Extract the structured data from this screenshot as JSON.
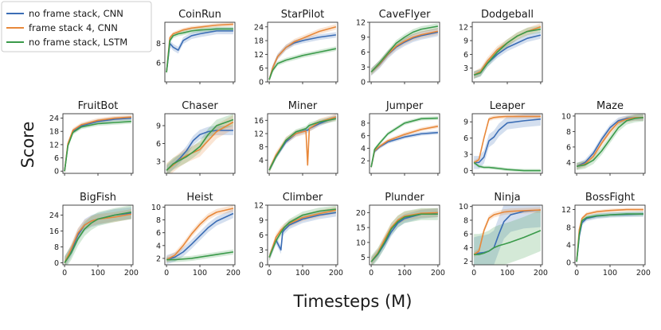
{
  "figure": {
    "ylabel": "Score",
    "xlabel": "Timesteps (M)",
    "x_ticks": [
      "0",
      "100",
      "200"
    ]
  },
  "legend": {
    "placement": "top-left",
    "entries": [
      {
        "label": "no frame stack, CNN",
        "color": "#3b6db5"
      },
      {
        "label": "frame stack 4, CNN",
        "color": "#e8883a"
      },
      {
        "label": "no frame stack, LSTM",
        "color": "#3a9a4a"
      }
    ]
  },
  "chart_data": [
    {
      "type": "line",
      "title": "CoinRun",
      "ylim": [
        4,
        10.2
      ],
      "yticks": [
        "6",
        "8"
      ],
      "x": [
        0,
        10,
        20,
        35,
        50,
        75,
        100,
        150,
        200
      ],
      "series": [
        {
          "name": "no frame stack, CNN",
          "values": [
            5,
            8.0,
            7.6,
            7.3,
            8.3,
            8.8,
            9.0,
            9.3,
            9.3
          ],
          "band": 0.35
        },
        {
          "name": "frame stack 4, CNN",
          "values": [
            5,
            8.6,
            9.0,
            9.2,
            9.4,
            9.6,
            9.7,
            9.9,
            10.0
          ],
          "band": 0.2
        },
        {
          "name": "no frame stack, LSTM",
          "values": [
            5,
            8.3,
            8.8,
            9.0,
            9.1,
            9.3,
            9.4,
            9.5,
            9.5
          ],
          "band": 0.25
        }
      ]
    },
    {
      "type": "line",
      "title": "StarPilot",
      "ylim": [
        0,
        26
      ],
      "yticks": [
        "0",
        "6",
        "12",
        "18",
        "24"
      ],
      "x": [
        0,
        10,
        25,
        50,
        75,
        100,
        150,
        200
      ],
      "series": [
        {
          "name": "no frame stack, CNN",
          "values": [
            1,
            6,
            11,
            15,
            17,
            18,
            19.5,
            20.5
          ],
          "band": 1.2
        },
        {
          "name": "frame stack 4, CNN",
          "values": [
            1,
            6,
            11,
            15,
            17.5,
            19,
            22,
            24
          ],
          "band": 1.2
        },
        {
          "name": "no frame stack, LSTM",
          "values": [
            1,
            5,
            8,
            9.5,
            10.5,
            11.5,
            13,
            14.5
          ],
          "band": 1.0
        }
      ]
    },
    {
      "type": "line",
      "title": "CaveFlyer",
      "ylim": [
        0,
        12
      ],
      "yticks": [
        "0",
        "3",
        "6",
        "9",
        "12"
      ],
      "x": [
        0,
        25,
        50,
        75,
        100,
        125,
        150,
        200
      ],
      "series": [
        {
          "name": "no frame stack, CNN",
          "values": [
            2,
            3.5,
            5.5,
            7,
            8,
            8.8,
            9.3,
            10
          ],
          "band": 0.8
        },
        {
          "name": "frame stack 4, CNN",
          "values": [
            2,
            3.6,
            5.6,
            7.2,
            8.2,
            9,
            9.5,
            10.2
          ],
          "band": 0.7
        },
        {
          "name": "no frame stack, LSTM",
          "values": [
            2,
            3.8,
            5.8,
            7.8,
            9,
            10,
            10.6,
            11.2
          ],
          "band": 0.6
        }
      ]
    },
    {
      "type": "line",
      "title": "Dodgeball",
      "ylim": [
        0,
        13
      ],
      "yticks": [
        "3",
        "6",
        "9",
        "12"
      ],
      "x": [
        0,
        20,
        40,
        70,
        100,
        130,
        160,
        200
      ],
      "series": [
        {
          "name": "no frame stack, CNN",
          "values": [
            1.5,
            2,
            4,
            6,
            7.5,
            8.5,
            9.5,
            10.2
          ],
          "band": 0.8
        },
        {
          "name": "frame stack 4, CNN",
          "values": [
            1.5,
            2.3,
            4.5,
            7,
            8.5,
            10,
            11,
            12
          ],
          "band": 0.8
        },
        {
          "name": "no frame stack, LSTM",
          "values": [
            1.5,
            2,
            4,
            6.5,
            8.5,
            10,
            11,
            11.5
          ],
          "band": 0.8
        }
      ]
    },
    {
      "type": "line",
      "title": "FruitBot",
      "ylim": [
        -1,
        26
      ],
      "yticks": [
        "0",
        "6",
        "12",
        "18",
        "24"
      ],
      "x": [
        0,
        10,
        25,
        50,
        100,
        150,
        200
      ],
      "series": [
        {
          "name": "no frame stack, CNN",
          "values": [
            0,
            12,
            18,
            20.5,
            22.5,
            23.5,
            24
          ],
          "band": 1.0
        },
        {
          "name": "frame stack 4, CNN",
          "values": [
            0,
            12.5,
            18.5,
            21,
            23,
            24,
            24.5
          ],
          "band": 1.0
        },
        {
          "name": "no frame stack, LSTM",
          "values": [
            0,
            11.5,
            17.5,
            20,
            21.5,
            22,
            22.5
          ],
          "band": 1.0
        }
      ]
    },
    {
      "type": "line",
      "title": "Chaser",
      "ylim": [
        1,
        11
      ],
      "yticks": [
        "3",
        "6",
        "9"
      ],
      "x": [
        0,
        20,
        40,
        60,
        80,
        100,
        125,
        150,
        200
      ],
      "series": [
        {
          "name": "no frame stack, CNN",
          "values": [
            1.5,
            2.5,
            3.5,
            4.8,
            6.5,
            7.5,
            8.0,
            8.2,
            8.2
          ],
          "band": 0.8
        },
        {
          "name": "frame stack 4, CNN",
          "values": [
            1.5,
            2.4,
            3.3,
            4.0,
            4.5,
            5.0,
            6.5,
            8.0,
            9.6
          ],
          "band": 1.2
        },
        {
          "name": "no frame stack, LSTM",
          "values": [
            1.5,
            2.6,
            3.2,
            3.8,
            4.6,
            5.5,
            7.5,
            9.0,
            10.0
          ],
          "band": 1.0
        }
      ]
    },
    {
      "type": "line",
      "title": "Miner",
      "ylim": [
        0,
        18
      ],
      "yticks": [
        "4",
        "8",
        "12",
        "16"
      ],
      "x": [
        0,
        20,
        50,
        80,
        110,
        115,
        120,
        150,
        200
      ],
      "series": [
        {
          "name": "no frame stack, CNN",
          "values": [
            1,
            5,
            9.5,
            12,
            13,
            13,
            13.5,
            15,
            17
          ],
          "band": 0.8
        },
        {
          "name": "frame stack 4, CNN",
          "values": [
            1,
            5.5,
            10,
            12,
            12.8,
            2.5,
            13.5,
            15.5,
            17
          ],
          "band": 1.0
        },
        {
          "name": "no frame stack, LSTM",
          "values": [
            1,
            5,
            10,
            12.5,
            13.5,
            14,
            14.5,
            15.5,
            16.5
          ],
          "band": 0.8
        }
      ]
    },
    {
      "type": "line",
      "title": "Jumper",
      "ylim": [
        0,
        9.5
      ],
      "yticks": [
        "2",
        "4",
        "6",
        "8"
      ],
      "x": [
        0,
        10,
        25,
        50,
        100,
        150,
        200
      ],
      "series": [
        {
          "name": "no frame stack, CNN",
          "values": [
            1,
            3.5,
            4.2,
            5.0,
            5.8,
            6.3,
            6.5
          ],
          "band": 0.3
        },
        {
          "name": "frame stack 4, CNN",
          "values": [
            1,
            3.6,
            4.3,
            5.2,
            6.2,
            7.0,
            7.5
          ],
          "band": 0.3
        },
        {
          "name": "no frame stack, LSTM",
          "values": [
            1,
            3.8,
            4.8,
            6.3,
            8.0,
            8.7,
            8.8
          ],
          "band": 0.3
        }
      ]
    },
    {
      "type": "line",
      "title": "Leaper",
      "ylim": [
        -0.5,
        10.5
      ],
      "yticks": [
        "0",
        "3",
        "6",
        "9"
      ],
      "x": [
        0,
        15,
        30,
        45,
        60,
        75,
        100,
        150,
        200
      ],
      "series": [
        {
          "name": "no frame stack, CNN",
          "values": [
            1.5,
            1.5,
            2.5,
            5.5,
            6.2,
            7.5,
            8.8,
            9.2,
            9.5
          ],
          "band": 1.2
        },
        {
          "name": "frame stack 4, CNN",
          "values": [
            1.5,
            2.0,
            6.0,
            9.5,
            9.8,
            9.9,
            10.0,
            10.0,
            10.0
          ],
          "band": 0.4
        },
        {
          "name": "no frame stack, LSTM",
          "values": [
            1.5,
            0.8,
            0.6,
            0.6,
            0.5,
            0.4,
            0.2,
            0.0,
            0.0
          ],
          "band": 0.3
        }
      ]
    },
    {
      "type": "line",
      "title": "Maze",
      "ylim": [
        2.6,
        10.3
      ],
      "yticks": [
        "4",
        "6",
        "8",
        "10"
      ],
      "x": [
        0,
        25,
        50,
        75,
        100,
        125,
        150,
        175,
        200
      ],
      "series": [
        {
          "name": "no frame stack, CNN",
          "values": [
            3.5,
            4.0,
            5.2,
            7.0,
            8.5,
            9.4,
            9.7,
            9.8,
            9.8
          ],
          "band": 0.4
        },
        {
          "name": "frame stack 4, CNN",
          "values": [
            3.5,
            3.8,
            4.8,
            6.5,
            8.0,
            9.2,
            9.6,
            9.8,
            9.8
          ],
          "band": 0.4
        },
        {
          "name": "no frame stack, LSTM",
          "values": [
            3.5,
            3.7,
            4.3,
            5.5,
            7.0,
            8.5,
            9.4,
            9.7,
            9.8
          ],
          "band": 0.5
        }
      ]
    },
    {
      "type": "line",
      "title": "BigFish",
      "ylim": [
        -1,
        29
      ],
      "yticks": [
        "0",
        "8",
        "16",
        "24"
      ],
      "x": [
        0,
        20,
        40,
        60,
        80,
        100,
        150,
        200
      ],
      "series": [
        {
          "name": "no frame stack, CNN",
          "values": [
            0,
            6,
            14,
            19,
            21,
            22,
            24,
            25
          ],
          "band": 3.0
        },
        {
          "name": "frame stack 4, CNN",
          "values": [
            0,
            7,
            15,
            19,
            21,
            22,
            23,
            24.5
          ],
          "band": 2.5
        },
        {
          "name": "no frame stack, LSTM",
          "values": [
            0,
            5,
            12,
            17,
            20,
            22,
            24,
            25.5
          ],
          "band": 3.5
        }
      ]
    },
    {
      "type": "line",
      "title": "Heist",
      "ylim": [
        1,
        10.3
      ],
      "yticks": [
        "2",
        "4",
        "6",
        "8",
        "10"
      ],
      "x": [
        0,
        25,
        50,
        75,
        100,
        125,
        150,
        200
      ],
      "series": [
        {
          "name": "no frame stack, CNN",
          "values": [
            1.8,
            2.2,
            3.0,
            4.2,
            5.5,
            6.8,
            7.8,
            9.0
          ],
          "band": 0.7
        },
        {
          "name": "frame stack 4, CNN",
          "values": [
            1.8,
            2.5,
            4.0,
            5.8,
            7.3,
            8.5,
            9.2,
            9.8
          ],
          "band": 0.5
        },
        {
          "name": "no frame stack, LSTM",
          "values": [
            1.8,
            1.8,
            1.9,
            2.0,
            2.2,
            2.4,
            2.6,
            3.0
          ],
          "band": 0.4
        }
      ]
    },
    {
      "type": "line",
      "title": "Climber",
      "ylim": [
        0,
        12
      ],
      "yticks": [
        "0",
        "3",
        "6",
        "9",
        "12"
      ],
      "x": [
        0,
        20,
        35,
        40,
        45,
        60,
        100,
        150,
        200
      ],
      "series": [
        {
          "name": "no frame stack, CNN",
          "values": [
            1.5,
            5.0,
            3.0,
            6.5,
            7.0,
            8.0,
            9.2,
            10.0,
            10.5
          ],
          "band": 0.8
        },
        {
          "name": "frame stack 4, CNN",
          "values": [
            1.5,
            5.5,
            7.0,
            7.3,
            7.6,
            8.3,
            9.5,
            10.3,
            11.0
          ],
          "band": 0.7
        },
        {
          "name": "no frame stack, LSTM",
          "values": [
            1.5,
            4.8,
            6.5,
            7.0,
            7.5,
            8.5,
            10.0,
            10.8,
            11.2
          ],
          "band": 0.7
        }
      ]
    },
    {
      "type": "line",
      "title": "Plunder",
      "ylim": [
        2.5,
        22.5
      ],
      "yticks": [
        "5",
        "10",
        "15",
        "20"
      ],
      "x": [
        0,
        20,
        40,
        60,
        80,
        100,
        150,
        200
      ],
      "series": [
        {
          "name": "no frame stack, CNN",
          "values": [
            3.5,
            6.0,
            9.5,
            13.5,
            16.5,
            18.0,
            19.5,
            20.0
          ],
          "band": 1.5
        },
        {
          "name": "frame stack 4, CNN",
          "values": [
            3.5,
            6.5,
            11.0,
            15.0,
            17.5,
            18.8,
            19.8,
            20.0
          ],
          "band": 1.5
        },
        {
          "name": "no frame stack, LSTM",
          "values": [
            3.5,
            6.2,
            10.0,
            14.5,
            17.0,
            18.5,
            19.5,
            19.5
          ],
          "band": 2.0
        }
      ]
    },
    {
      "type": "line",
      "title": "Ninja",
      "ylim": [
        1.5,
        10.2
      ],
      "yticks": [
        "2",
        "4",
        "6",
        "8",
        "10"
      ],
      "x": [
        0,
        15,
        30,
        45,
        60,
        75,
        90,
        110,
        150,
        200
      ],
      "series": [
        {
          "name": "no frame stack, CNN",
          "values": [
            3,
            3.2,
            3.3,
            3.5,
            4.0,
            6.0,
            7.8,
            8.8,
            9.3,
            9.5
          ],
          "band": 2.5
        },
        {
          "name": "frame stack 4, CNN",
          "values": [
            3,
            3.5,
            6.5,
            8.3,
            8.8,
            9.0,
            9.2,
            9.3,
            9.4,
            9.5
          ],
          "band": 0.4
        },
        {
          "name": "no frame stack, LSTM",
          "values": [
            3,
            3.0,
            3.2,
            3.5,
            4.0,
            4.3,
            4.5,
            4.8,
            5.5,
            6.5
          ],
          "band": 3.0
        }
      ]
    },
    {
      "type": "line",
      "title": "BossFight",
      "ylim": [
        -0.5,
        13
      ],
      "yticks": [
        "0",
        "4",
        "8",
        "12"
      ],
      "x": [
        0,
        8,
        16,
        30,
        60,
        100,
        150,
        200
      ],
      "series": [
        {
          "name": "no frame stack, CNN",
          "values": [
            0.2,
            6.0,
            9.0,
            10.0,
            10.5,
            10.8,
            10.9,
            11.0
          ],
          "band": 0.6
        },
        {
          "name": "frame stack 4, CNN",
          "values": [
            0.2,
            7.5,
            10.0,
            11.0,
            11.5,
            11.8,
            12.0,
            12.0
          ],
          "band": 0.4
        },
        {
          "name": "no frame stack, LSTM",
          "values": [
            0.2,
            6.5,
            9.5,
            10.2,
            10.6,
            10.8,
            11.0,
            11.0
          ],
          "band": 0.5
        }
      ]
    }
  ]
}
